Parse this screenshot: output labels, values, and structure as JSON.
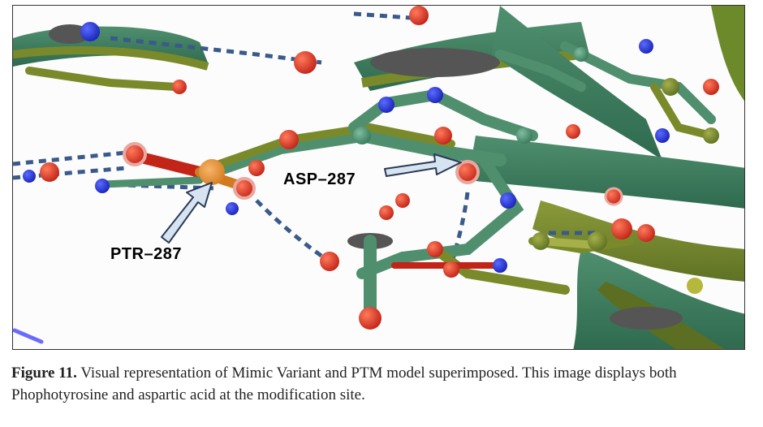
{
  "figure": {
    "labels": {
      "ptr": "PTR–287",
      "asp": "ASP–287"
    }
  },
  "caption": {
    "number": "Figure 11.",
    "text": " Visual representation of Mimic Variant and PTM model superimposed. This image displays both Phophotyrosine and aspartic acid at the modification site."
  }
}
